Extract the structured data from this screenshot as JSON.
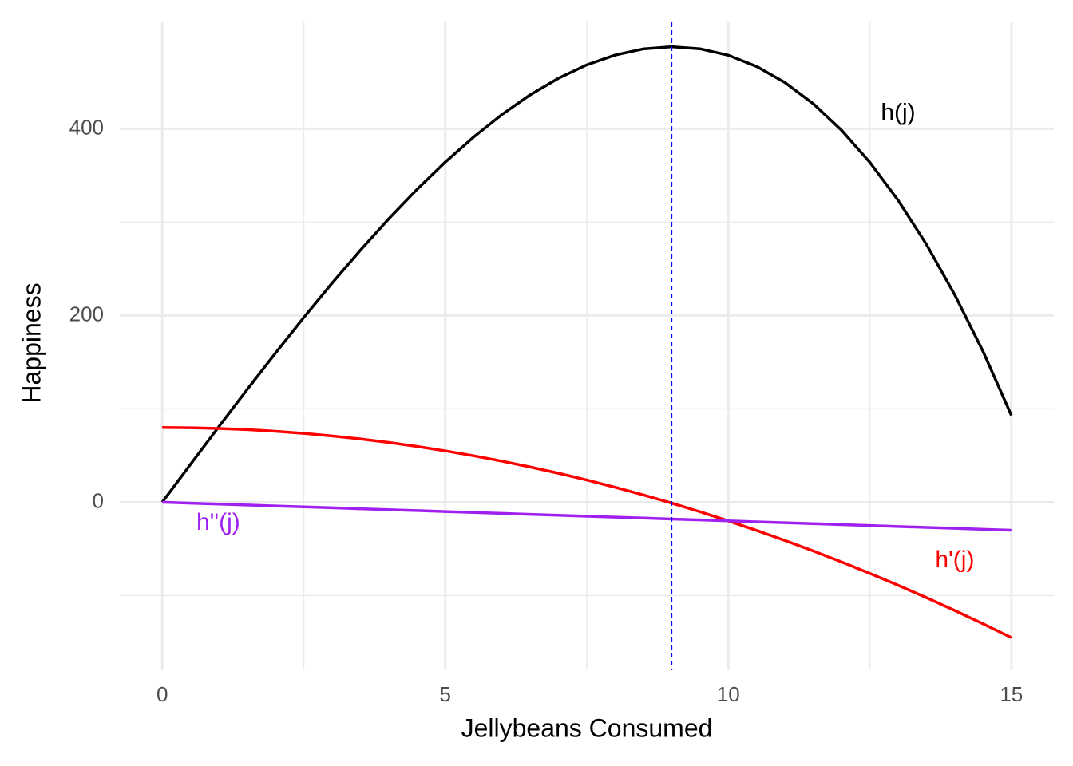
{
  "chart_data": {
    "type": "line",
    "x_label": "Jellybeans Consumed",
    "y_label": "Happiness",
    "x": [
      0,
      0.5,
      1,
      1.5,
      2,
      2.5,
      3,
      3.5,
      4,
      4.5,
      5,
      5.5,
      6,
      6.5,
      7,
      7.5,
      8,
      8.5,
      9,
      9.5,
      10,
      10.5,
      11,
      11.5,
      12,
      12.5,
      13,
      13.5,
      14,
      14.5,
      15
    ],
    "series": [
      {
        "color": "#000000",
        "values": [
          0,
          40.6,
          80.9,
          120.7,
          159.7,
          197.8,
          234.6,
          269.9,
          303.5,
          335.0,
          364.3,
          391.1,
          415.2,
          436.3,
          454.1,
          468.4,
          478.9,
          485.5,
          487.8,
          485.6,
          478.7,
          466.7,
          449.5,
          426.8,
          398.4,
          364.0,
          323.3,
          276.1,
          222.1,
          161.4,
          93.0
        ]
      },
      {
        "color": "#ff0000",
        "values": [
          80,
          79.75,
          79,
          77.75,
          76,
          73.75,
          71,
          67.75,
          64,
          59.75,
          55,
          49.75,
          44,
          37.75,
          31,
          23.75,
          16,
          7.75,
          -1,
          -10.25,
          -20,
          -30.25,
          -41,
          -52.25,
          -64,
          -76.25,
          -89,
          -102.25,
          -116,
          -130.25,
          -145
        ]
      },
      {
        "color": "#a020f0",
        "values": [
          0,
          -1,
          -2,
          -3,
          -4,
          -5,
          -6,
          -7,
          -8,
          -9,
          -10,
          -11,
          -12,
          -13,
          -14,
          -15,
          -16,
          -17,
          -18,
          -19,
          -20,
          -21,
          -22,
          -23,
          -24,
          -25,
          -26,
          -27,
          -28,
          -29,
          -30
        ]
      }
    ],
    "annotations": [
      {
        "text": "h(j)",
        "x": 13.0,
        "y": 416,
        "color": "#000000"
      },
      {
        "text": "h'(j)",
        "x": 14.0,
        "y": -63,
        "color": "#ff0000"
      },
      {
        "text": "h''(j)",
        "x": 0.99,
        "y": -23,
        "color": "#a020f0"
      }
    ],
    "vline": {
      "x": 9,
      "color": "#0000ff",
      "dashed": true
    },
    "xlim": [
      -0.75,
      15.75
    ],
    "ylim": [
      -180,
      514
    ],
    "xticks": [
      0,
      5,
      10,
      15
    ],
    "yticks": [
      0,
      200,
      400
    ],
    "x_minor_grid": [
      2.5,
      7.5,
      12.5
    ],
    "y_minor_grid": [
      -100,
      100,
      300
    ],
    "grid": true
  }
}
